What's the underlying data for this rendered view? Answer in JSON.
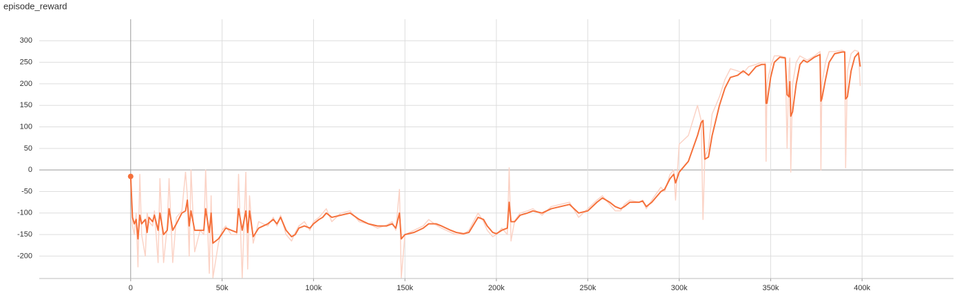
{
  "chart_data": {
    "type": "line",
    "title": "episode_reward",
    "x": [
      0,
      1000,
      2000,
      3000,
      4000,
      5000,
      6000,
      8000,
      9000,
      10000,
      12000,
      13000,
      15000,
      16000,
      18000,
      20000,
      21000,
      23000,
      25000,
      28000,
      30000,
      31000,
      32000,
      33000,
      35000,
      38000,
      40000,
      41000,
      43000,
      44000,
      45000,
      48000,
      50000,
      52000,
      55000,
      58000,
      59000,
      61000,
      63000,
      64000,
      65000,
      67000,
      70000,
      75000,
      78000,
      80000,
      82000,
      85000,
      88000,
      90000,
      92000,
      95000,
      98000,
      100000,
      103000,
      105000,
      107000,
      110000,
      115000,
      120000,
      125000,
      130000,
      135000,
      140000,
      143000,
      145000,
      147000,
      148000,
      150000,
      155000,
      160000,
      163000,
      167000,
      170000,
      175000,
      178000,
      182000,
      185000,
      190000,
      193000,
      195000,
      198000,
      200000,
      203000,
      206000,
      207000,
      208000,
      210000,
      213000,
      217000,
      220000,
      225000,
      230000,
      235000,
      240000,
      245000,
      250000,
      255000,
      258000,
      262000,
      265000,
      268000,
      270000,
      273000,
      278000,
      280000,
      282000,
      285000,
      290000,
      292000,
      295000,
      297000,
      298000,
      300000,
      305000,
      310000,
      312000,
      313000,
      314000,
      316000,
      318000,
      322000,
      325000,
      328000,
      332000,
      335000,
      338000,
      342000,
      345000,
      347000,
      347500,
      348000,
      350000,
      352000,
      355000,
      358000,
      359000,
      360000,
      360500,
      361000,
      362000,
      364000,
      366000,
      368000,
      370000,
      374000,
      377000,
      377500,
      378000,
      380000,
      382000,
      385000,
      389000,
      390500,
      391000,
      392000,
      394000,
      396000,
      398000,
      399000
    ],
    "series": [
      {
        "color": "#fbd3c6",
        "values": [
          -15,
          -130,
          -150,
          -100,
          -225,
          -10,
          -150,
          -200,
          -100,
          -120,
          -130,
          -95,
          -215,
          -20,
          -215,
          -130,
          -20,
          -215,
          -110,
          -95,
          -5,
          -60,
          -200,
          0,
          -190,
          -140,
          -150,
          0,
          -240,
          -60,
          -250,
          -170,
          -140,
          -130,
          -150,
          -150,
          -10,
          -250,
          -5,
          -230,
          -60,
          -170,
          -120,
          -130,
          -110,
          -130,
          -105,
          -150,
          -165,
          -145,
          -130,
          -120,
          -140,
          -120,
          -110,
          -100,
          -90,
          -120,
          -100,
          -95,
          -120,
          -125,
          -135,
          -128,
          -120,
          -140,
          -45,
          -250,
          -150,
          -140,
          -130,
          -115,
          -128,
          -135,
          -145,
          -150,
          -150,
          -140,
          -100,
          -120,
          -140,
          -155,
          -150,
          -135,
          -150,
          5,
          -165,
          -118,
          -100,
          -95,
          -90,
          -105,
          -85,
          -80,
          -75,
          -110,
          -90,
          -70,
          -60,
          -80,
          -95,
          -95,
          -80,
          -70,
          -75,
          -70,
          -90,
          -70,
          -40,
          -50,
          -10,
          0,
          -70,
          60,
          80,
          150,
          115,
          -115,
          30,
          50,
          130,
          170,
          210,
          235,
          230,
          225,
          240,
          245,
          250,
          250,
          20,
          200,
          240,
          265,
          265,
          262,
          50,
          230,
          260,
          -5,
          200,
          250,
          265,
          260,
          255,
          265,
          275,
          0,
          200,
          250,
          275,
          275,
          278,
          275,
          5,
          230,
          270,
          278,
          275,
          195
        ]
      },
      {
        "color": "#f5703a",
        "values": [
          -15,
          -110,
          -125,
          -115,
          -160,
          -105,
          -125,
          -115,
          -145,
          -110,
          -120,
          -105,
          -140,
          -100,
          -150,
          -140,
          -90,
          -140,
          -125,
          -100,
          -95,
          -70,
          -130,
          -95,
          -140,
          -140,
          -140,
          -90,
          -145,
          -100,
          -170,
          -160,
          -148,
          -135,
          -140,
          -145,
          -90,
          -140,
          -95,
          -145,
          -95,
          -155,
          -135,
          -125,
          -115,
          -125,
          -110,
          -140,
          -155,
          -150,
          -135,
          -130,
          -135,
          -125,
          -115,
          -110,
          -100,
          -110,
          -105,
          -100,
          -115,
          -125,
          -130,
          -130,
          -125,
          -135,
          -100,
          -160,
          -150,
          -145,
          -135,
          -125,
          -125,
          -130,
          -140,
          -145,
          -148,
          -145,
          -110,
          -115,
          -130,
          -145,
          -148,
          -140,
          -135,
          -75,
          -120,
          -120,
          -105,
          -100,
          -95,
          -100,
          -90,
          -85,
          -80,
          -100,
          -95,
          -75,
          -65,
          -75,
          -85,
          -90,
          -85,
          -75,
          -75,
          -72,
          -85,
          -75,
          -50,
          -45,
          -20,
          -10,
          -30,
          -5,
          20,
          80,
          110,
          115,
          25,
          30,
          80,
          150,
          190,
          215,
          220,
          230,
          220,
          240,
          245,
          245,
          155,
          155,
          215,
          250,
          262,
          260,
          175,
          170,
          205,
          125,
          135,
          200,
          245,
          255,
          250,
          262,
          268,
          160,
          165,
          210,
          250,
          270,
          274,
          274,
          165,
          170,
          230,
          262,
          272,
          240
        ]
      }
    ],
    "xlim": [
      -50000,
      450000
    ],
    "xticks": [
      0,
      {
        "value": 50000,
        "label": "50k"
      },
      {
        "value": 100000,
        "label": "100k"
      },
      {
        "value": 150000,
        "label": "150k"
      },
      {
        "value": 200000,
        "label": "200k"
      },
      {
        "value": 250000,
        "label": "250k"
      },
      {
        "value": 300000,
        "label": "300k"
      },
      {
        "value": 350000,
        "label": "350k"
      },
      {
        "value": 400000,
        "label": "400k"
      }
    ],
    "ylim": [
      -252,
      350
    ],
    "yticks": [
      -200,
      -150,
      -100,
      -50,
      0,
      50,
      100,
      150,
      200,
      250,
      300
    ],
    "grid": true
  }
}
